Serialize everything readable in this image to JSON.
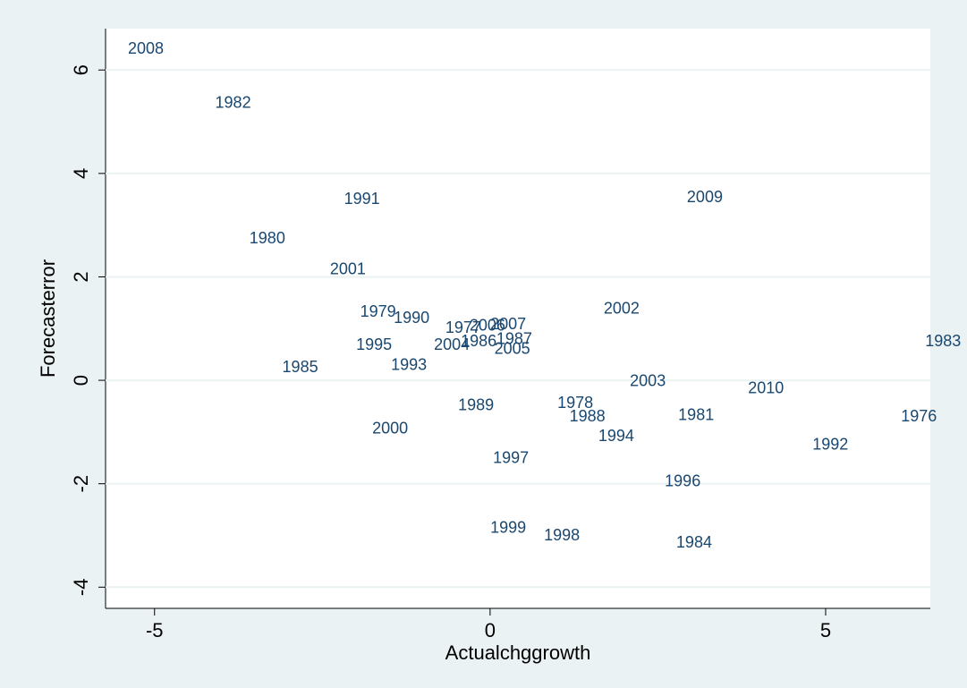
{
  "chart_data": {
    "type": "scatter",
    "x_label": "Actualchggrowth",
    "y_label": "Forecasterror",
    "labels": [
      "2008",
      "1982",
      "1991",
      "2009",
      "1980",
      "2001",
      "1979",
      "1990",
      "2002",
      "1977",
      "2006",
      "2007",
      "1986",
      "1987",
      "2004",
      "2005",
      "1995",
      "1983",
      "1985",
      "1993",
      "2010",
      "2003",
      "1989",
      "1978",
      "1988",
      "1981",
      "1976",
      "1994",
      "2000",
      "1992",
      "1997",
      "1996",
      "1999",
      "1998",
      "1984"
    ],
    "x": [
      -5.45,
      -4.15,
      -2.23,
      2.88,
      -3.64,
      -2.44,
      -1.99,
      -1.49,
      1.64,
      -0.72,
      -0.36,
      -0.05,
      -0.49,
      0.04,
      -0.89,
      0.01,
      -2.05,
      6.43,
      -3.15,
      -1.53,
      3.79,
      2.03,
      -0.53,
      0.95,
      1.13,
      2.75,
      6.07,
      1.56,
      -1.81,
      4.75,
      -0.01,
      2.55,
      -0.05,
      0.75,
      2.72
    ],
    "y": [
      6.4,
      5.35,
      3.49,
      3.53,
      2.73,
      2.13,
      1.31,
      1.19,
      1.37,
      1.0,
      1.04,
      1.07,
      0.74,
      0.78,
      0.67,
      0.59,
      0.67,
      0.74,
      0.24,
      0.28,
      -0.17,
      -0.03,
      -0.5,
      -0.45,
      -0.71,
      -0.69,
      -0.71,
      -1.09,
      -0.95,
      -1.26,
      -1.52,
      -1.97,
      -2.87,
      -3.01,
      -3.15
    ],
    "color": "#1a476f",
    "xlim": [
      -5.73,
      6.56
    ],
    "ylim": [
      -4.41,
      6.8
    ],
    "xticks": [
      -5,
      0,
      5
    ],
    "yticks": [
      -4,
      -2,
      0,
      2,
      4,
      6
    ],
    "grid": true
  }
}
